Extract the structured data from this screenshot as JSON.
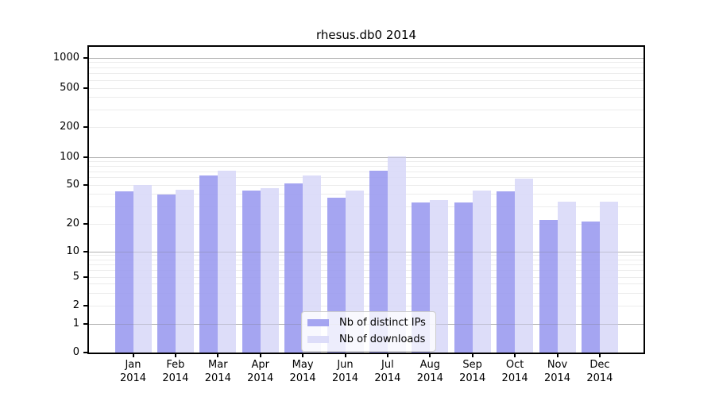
{
  "chart_data": {
    "type": "bar",
    "title": "rhesus.db0 2014",
    "categories": [
      "Jan",
      "Feb",
      "Mar",
      "Apr",
      "May",
      "Jun",
      "Jul",
      "Aug",
      "Sep",
      "Oct",
      "Nov",
      "Dec"
    ],
    "year_label": "2014",
    "series": [
      {
        "name": "Nb of distinct IPs",
        "color": "#9b9bef",
        "values": [
          43,
          40,
          64,
          44,
          52,
          37,
          72,
          33,
          33,
          43,
          22,
          21
        ]
      },
      {
        "name": "Nb of downloads",
        "color": "#d9d9f8",
        "values": [
          50,
          45,
          72,
          46,
          64,
          44,
          101,
          35,
          44,
          59,
          34,
          34
        ]
      }
    ],
    "yscale": "log",
    "y_ticks": [
      0,
      1,
      2,
      5,
      10,
      20,
      50,
      100,
      200,
      500,
      1000
    ],
    "ylim": [
      0,
      1500
    ],
    "grid": true,
    "legend_position": "lower center",
    "axis_color": "#000000",
    "major_grid_color": "#c6c6c6",
    "minor_grid_color": "#ececec",
    "major_grid_overlay_color": "rgba(130,130,130,0.28)"
  }
}
